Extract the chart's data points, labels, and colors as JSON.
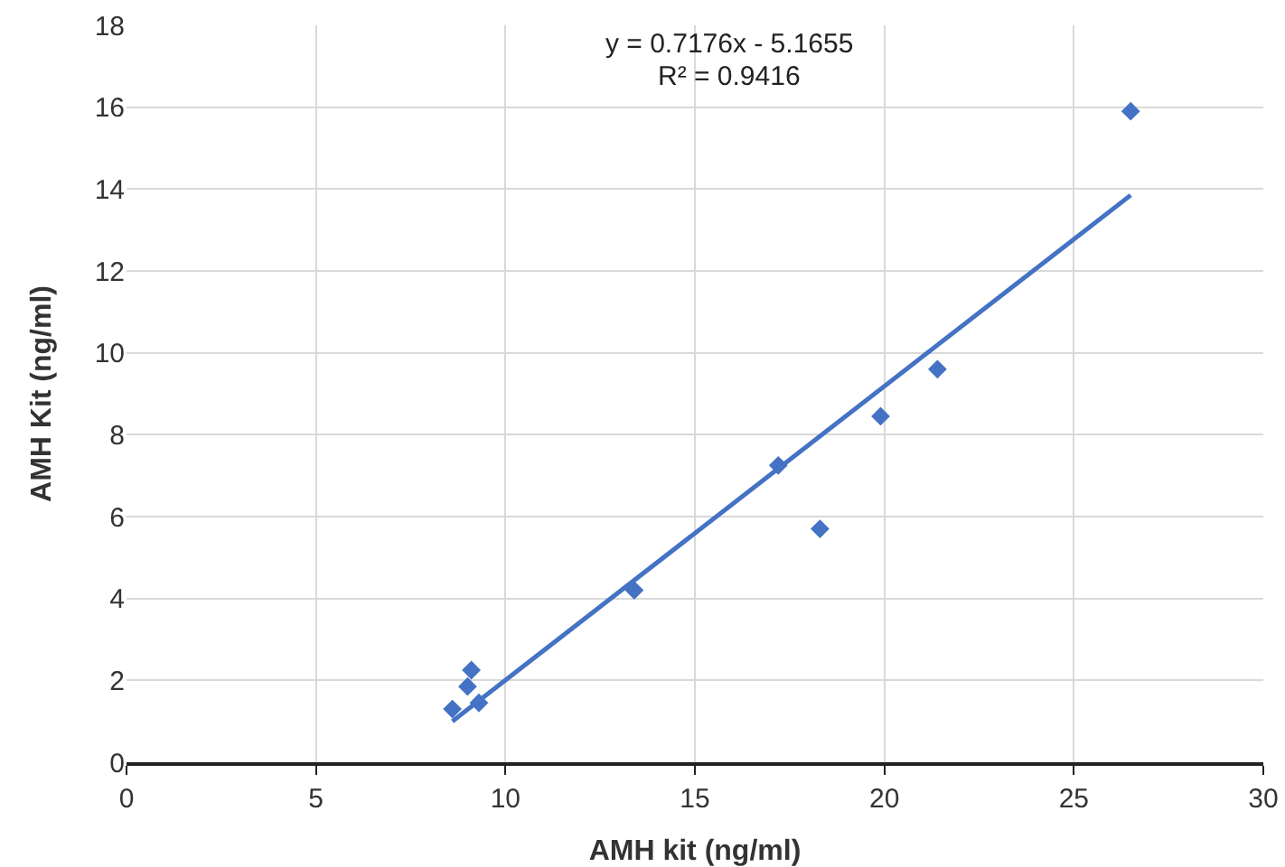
{
  "chart_data": {
    "type": "scatter",
    "xlabel": "AMH kit (ng/ml)",
    "ylabel": "AMH Kit (ng/ml)",
    "xlim": [
      0,
      30
    ],
    "xticks": [
      0,
      5,
      10,
      15,
      20,
      25,
      30
    ],
    "ylim": [
      0,
      18
    ],
    "yticks": [
      0,
      2,
      4,
      6,
      8,
      10,
      12,
      14,
      16,
      18
    ],
    "grid": true,
    "annotations": [
      "y = 0.7176x - 5.1655",
      "R² = 0.9416"
    ],
    "series": [
      {
        "marker": "diamond",
        "color": "#4472c4",
        "x": [
          8.6,
          9.0,
          9.1,
          9.3,
          13.4,
          17.2,
          18.3,
          19.9,
          21.4,
          26.5
        ],
        "values": [
          1.3,
          1.85,
          2.25,
          1.45,
          4.2,
          7.25,
          5.7,
          8.45,
          9.6,
          15.9
        ]
      },
      {
        "type": "line",
        "color": "#4472c4",
        "line_style": "solid",
        "x": [
          8.6,
          26.5
        ],
        "values": [
          1.0,
          13.85
        ]
      }
    ]
  }
}
